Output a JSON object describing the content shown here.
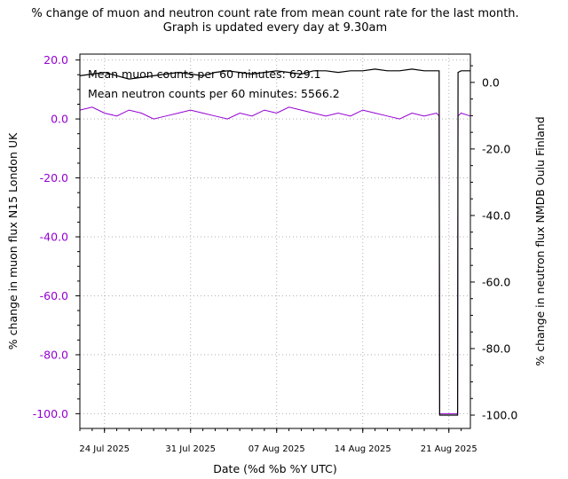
{
  "chart_data": {
    "type": "line",
    "title": "% change of muon and neutron count rate from mean count rate for the last month.",
    "subtitle": "Graph is updated every day at 9.30am",
    "xlabel": "Date (%d %b %Y UTC)",
    "ylabel_left": "% change in muon flux N15 London UK",
    "ylabel_right": "% change in neutron flux NMDB Oulu Finland",
    "left_color": "#9400d3",
    "right_color": "#000000",
    "grid": "dotted",
    "xlim": [
      "2025-07-22",
      "2025-08-22T18:00"
    ],
    "ylim_left": [
      -105,
      22
    ],
    "ylim_right": [
      -104,
      8.5
    ],
    "x_ticks": [
      {
        "date": "2025-07-24",
        "label": "24 Jul 2025"
      },
      {
        "date": "2025-07-31",
        "label": "31 Jul 2025"
      },
      {
        "date": "2025-08-07",
        "label": "07 Aug 2025"
      },
      {
        "date": "2025-08-14",
        "label": "14 Aug 2025"
      },
      {
        "date": "2025-08-21",
        "label": "21 Aug 2025"
      }
    ],
    "y_ticks_left": [
      {
        "value": 20,
        "label": "20.0"
      },
      {
        "value": 0,
        "label": "0.0"
      },
      {
        "value": -20,
        "label": "-20.0"
      },
      {
        "value": -40,
        "label": "-40.0"
      },
      {
        "value": -60,
        "label": "-60.0"
      },
      {
        "value": -80,
        "label": "-80.0"
      },
      {
        "value": -100,
        "label": "-100.0"
      }
    ],
    "y_ticks_right": [
      {
        "value": 0,
        "label": "0.0"
      },
      {
        "value": -20,
        "label": "-20.0"
      },
      {
        "value": -40,
        "label": "-40.0"
      },
      {
        "value": -60,
        "label": "-60.0"
      },
      {
        "value": -80,
        "label": "-80.0"
      },
      {
        "value": -100,
        "label": "-100.0"
      }
    ],
    "annotations": [
      "Mean muon counts per 60 minutes: 629.1",
      "Mean neutron counts per 60 minutes: 5566.2"
    ],
    "series": [
      {
        "axis": "left",
        "color": "#9400d3",
        "x": [
          "2025-07-22",
          "2025-07-23",
          "2025-07-24",
          "2025-07-25",
          "2025-07-26",
          "2025-07-27",
          "2025-07-28",
          "2025-07-29",
          "2025-07-30",
          "2025-07-31",
          "2025-08-01",
          "2025-08-02",
          "2025-08-03",
          "2025-08-04",
          "2025-08-05",
          "2025-08-06",
          "2025-08-07",
          "2025-08-08",
          "2025-08-09",
          "2025-08-10",
          "2025-08-11",
          "2025-08-12",
          "2025-08-13",
          "2025-08-14",
          "2025-08-15",
          "2025-08-16",
          "2025-08-17",
          "2025-08-18",
          "2025-08-19",
          "2025-08-20",
          "2025-08-20T05:00",
          "2025-08-20T06:00",
          "2025-08-21T17:00",
          "2025-08-21T18:00",
          "2025-08-22",
          "2025-08-22T18:00"
        ],
        "y": [
          3,
          4,
          2,
          1,
          3,
          2,
          0,
          1,
          2,
          3,
          2,
          1,
          0,
          2,
          1,
          3,
          2,
          4,
          3,
          2,
          1,
          2,
          1,
          3,
          2,
          1,
          0,
          2,
          1,
          2,
          1,
          -100,
          -100,
          1,
          2,
          1
        ]
      },
      {
        "axis": "right",
        "color": "#000000",
        "x": [
          "2025-07-22",
          "2025-07-23",
          "2025-07-24",
          "2025-07-25",
          "2025-07-26",
          "2025-07-27",
          "2025-07-28",
          "2025-07-29",
          "2025-07-30",
          "2025-07-31",
          "2025-08-01",
          "2025-08-02",
          "2025-08-03",
          "2025-08-04",
          "2025-08-05",
          "2025-08-06",
          "2025-08-07",
          "2025-08-08",
          "2025-08-09",
          "2025-08-10",
          "2025-08-11",
          "2025-08-12",
          "2025-08-13",
          "2025-08-14",
          "2025-08-15",
          "2025-08-16",
          "2025-08-17",
          "2025-08-18",
          "2025-08-19",
          "2025-08-20",
          "2025-08-20T05:00",
          "2025-08-20T06:00",
          "2025-08-21T17:00",
          "2025-08-21T18:00",
          "2025-08-22",
          "2025-08-22T18:00"
        ],
        "y": [
          2,
          2.5,
          3,
          2,
          1,
          1.5,
          2,
          2.5,
          3,
          2.5,
          2,
          3,
          3.5,
          3,
          2.5,
          3,
          3.5,
          3,
          2.5,
          3.5,
          3.5,
          3,
          3.5,
          3.5,
          4,
          3.5,
          3.5,
          4,
          3.5,
          3.5,
          3.5,
          -100,
          -100,
          3,
          3.5,
          3.5
        ]
      }
    ]
  }
}
